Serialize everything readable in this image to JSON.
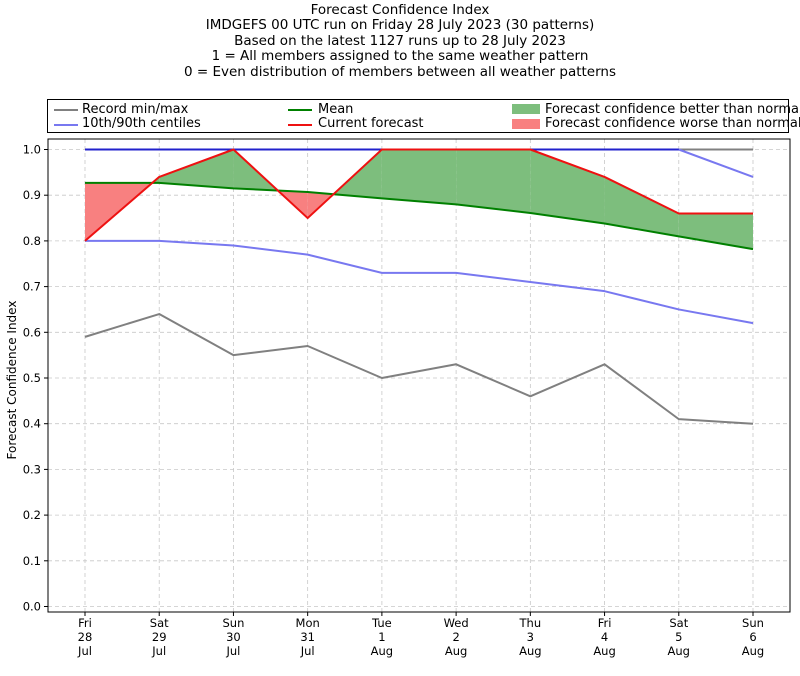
{
  "title": {
    "lines": [
      "Forecast Confidence Index",
      "IMDGEFS 00 UTC run on Friday 28 July 2023 (30 patterns)",
      "Based on the latest 1127 runs up to 28 July 2023",
      "1 = All members assigned to the same weather pattern",
      "0 = Even distribution of members between all weather patterns"
    ]
  },
  "legend": {
    "record": "Record min/max",
    "centiles": "10th/90th centiles",
    "mean": "Mean",
    "current": "Current forecast",
    "better": "Forecast confidence better than normal",
    "worse": "Forecast confidence worse than normal"
  },
  "colors": {
    "record": "#808080",
    "centile": "#7878f0",
    "max_line": "#2222cc",
    "mean": "#008000",
    "current": "#ee1111",
    "better_fill": "#7dbe7d",
    "worse_fill": "#f88080"
  },
  "chart_data": {
    "type": "line",
    "title": "Forecast Confidence Index",
    "xlabel": "",
    "ylabel": "Forecast Confidence Index",
    "ylim": [
      0,
      1
    ],
    "yticks": [
      "0.0",
      "0.1",
      "0.2",
      "0.3",
      "0.4",
      "0.5",
      "0.6",
      "0.7",
      "0.8",
      "0.9",
      "1.0"
    ],
    "grid": true,
    "legend_position": "top (above plot)",
    "categories": [
      [
        "Fri",
        "28",
        "Jul"
      ],
      [
        "Sat",
        "29",
        "Jul"
      ],
      [
        "Sun",
        "30",
        "Jul"
      ],
      [
        "Mon",
        "31",
        "Jul"
      ],
      [
        "Tue",
        "1",
        "Aug"
      ],
      [
        "Wed",
        "2",
        "Aug"
      ],
      [
        "Thu",
        "3",
        "Aug"
      ],
      [
        "Fri",
        "4",
        "Aug"
      ],
      [
        "Sat",
        "5",
        "Aug"
      ],
      [
        "Sun",
        "6",
        "Aug"
      ]
    ],
    "series": [
      {
        "name": "Record min",
        "values": [
          0.59,
          0.64,
          0.55,
          0.57,
          0.5,
          0.53,
          0.46,
          0.53,
          0.41,
          0.4
        ]
      },
      {
        "name": "Record max",
        "values": [
          1.0,
          1.0,
          1.0,
          1.0,
          1.0,
          1.0,
          1.0,
          1.0,
          1.0,
          1.0
        ]
      },
      {
        "name": "10th centile",
        "values": [
          0.8,
          0.8,
          0.79,
          0.77,
          0.73,
          0.73,
          0.71,
          0.69,
          0.65,
          0.62
        ]
      },
      {
        "name": "90th centile",
        "values": [
          1.0,
          1.0,
          1.0,
          1.0,
          1.0,
          1.0,
          1.0,
          1.0,
          1.0,
          0.94
        ]
      },
      {
        "name": "Mean",
        "values": [
          0.927,
          0.927,
          0.915,
          0.907,
          0.893,
          0.88,
          0.861,
          0.838,
          0.81,
          0.782
        ]
      },
      {
        "name": "Current forecast",
        "values": [
          0.8,
          0.94,
          1.0,
          0.85,
          1.0,
          1.0,
          1.0,
          0.94,
          0.86,
          0.86
        ]
      }
    ]
  }
}
